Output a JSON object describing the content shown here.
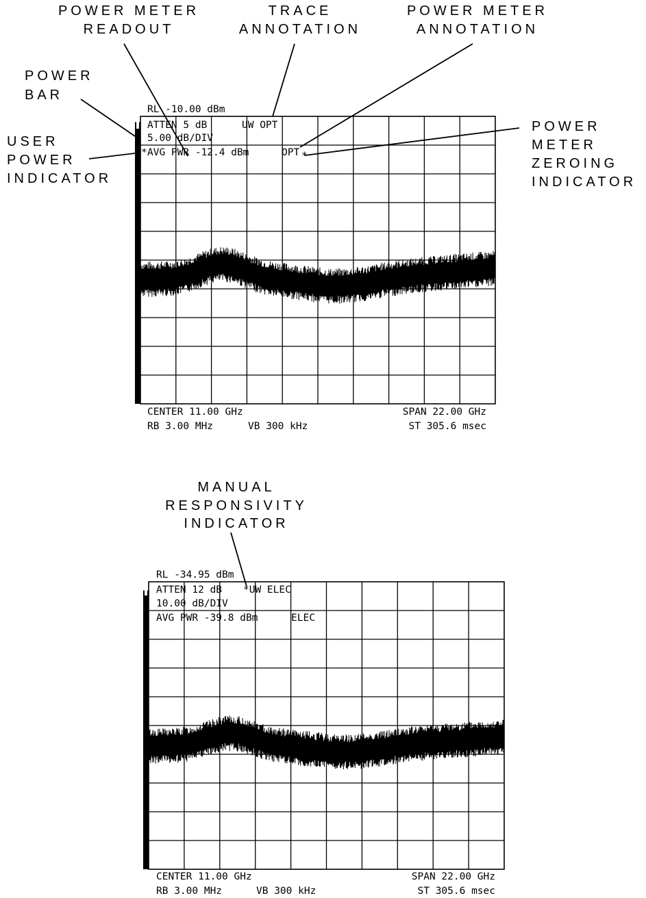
{
  "colors": {
    "ink": "#000000",
    "paper": "#ffffff"
  },
  "callouts": {
    "power_meter_readout": [
      "POWER METER",
      "READOUT"
    ],
    "trace_annotation": [
      "TRACE",
      "ANNOTATION"
    ],
    "power_meter_annotation": [
      "POWER METER",
      "ANNOTATION"
    ],
    "power_bar": [
      "POWER",
      "BAR"
    ],
    "user_power_indicator": [
      "USER",
      "POWER",
      "INDICATOR"
    ],
    "power_meter_zeroing_indicator": [
      "POWER",
      "METER",
      "ZEROING",
      "INDICATOR"
    ],
    "manual_responsivity_indicator": [
      "MANUAL",
      "RESPONSIVITY",
      "INDICATOR"
    ]
  },
  "screens": [
    {
      "ref_level": "RL -10.00 dBm",
      "atten": "ATTEN 5 dB",
      "trace_ann": "UW OPT",
      "scale": "5.00 dB/DIV",
      "avg_pwr": "AVG PWR -12.4 dBm",
      "pm_ann": "OPT",
      "user_power_mark": "*",
      "zeroing_mark": "*",
      "center": "CENTER 11.00 GHz",
      "span": "SPAN 22.00 GHz",
      "rbw": "RB 3.00 MHz",
      "vbw": "VB 300 kHz",
      "sweep": "ST 305.6 msec",
      "power_bar_level": 0.98
    },
    {
      "ref_level": "RL -34.95 dBm",
      "atten": "ATTEN 12 dB",
      "trace_ann": "*UW ELEC",
      "scale": "10.00 dB/DIV",
      "avg_pwr": "AVG PWR -39.8 dBm",
      "pm_ann": "ELEC",
      "center": "CENTER 11.00 GHz",
      "span": "SPAN 22.00 GHz",
      "rbw": "RB 3.00 MHz",
      "vbw": "VB 300 kHz",
      "sweep": "ST 305.6 msec",
      "power_bar_level": 0.97
    }
  ]
}
